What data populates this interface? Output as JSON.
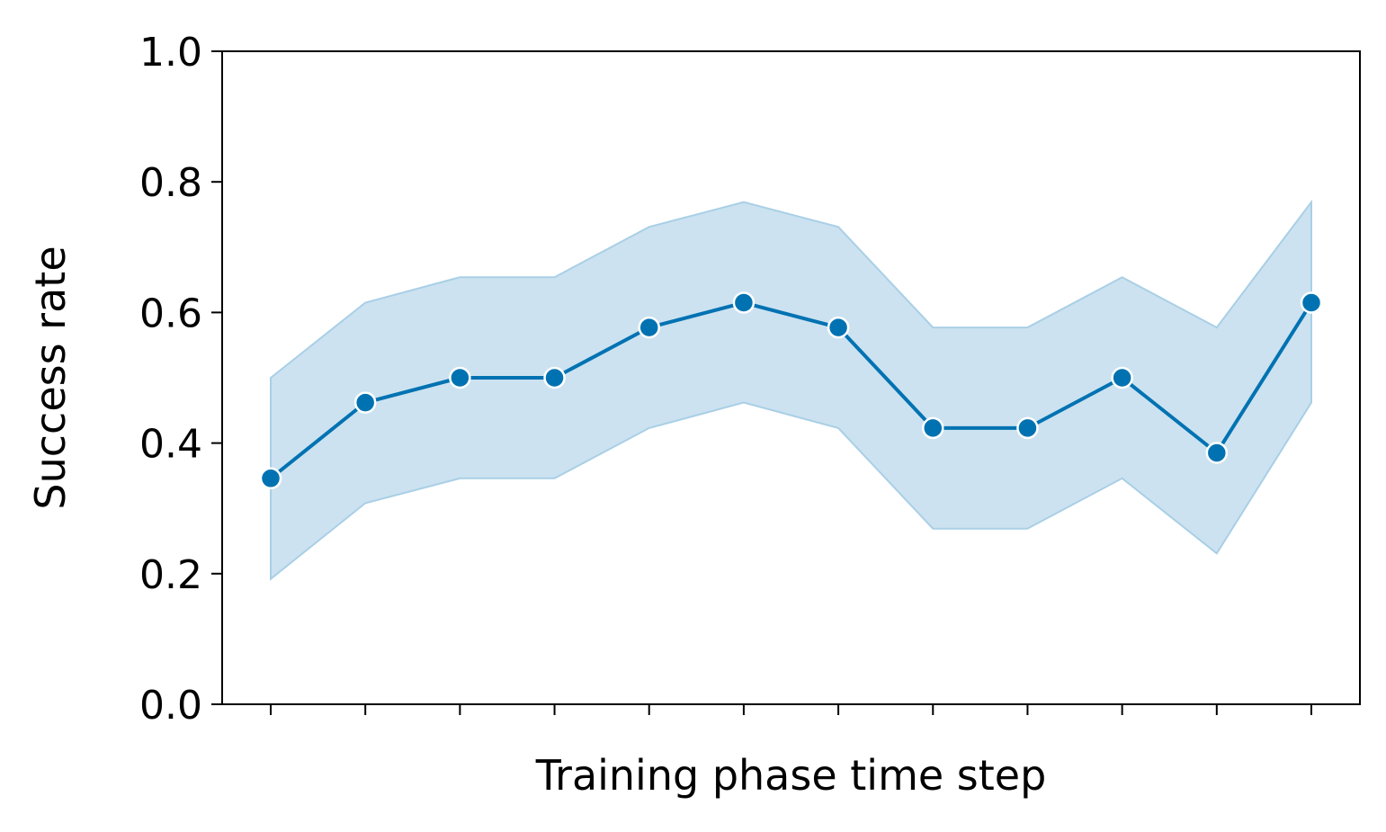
{
  "chart_data": {
    "type": "line",
    "title": "",
    "xlabel": "Training phase time step",
    "ylabel": "Success rate",
    "ylim": [
      0.0,
      1.0
    ],
    "yticks": [
      0.0,
      0.2,
      0.4,
      0.6,
      0.8,
      1.0
    ],
    "ytick_labels": [
      "0.0",
      "0.2",
      "0.4",
      "0.6",
      "0.8",
      "1.0"
    ],
    "x": [
      1,
      2,
      3,
      4,
      5,
      6,
      7,
      8,
      9,
      10,
      11,
      12
    ],
    "xtick_labels_visible": false,
    "grid": false,
    "legend": "none",
    "series": [
      {
        "values": [
          0.346,
          0.462,
          0.5,
          0.5,
          0.577,
          0.615,
          0.577,
          0.423,
          0.423,
          0.5,
          0.385,
          0.615
        ],
        "lower": [
          0.192,
          0.308,
          0.346,
          0.346,
          0.423,
          0.462,
          0.423,
          0.269,
          0.269,
          0.346,
          0.231,
          0.462
        ],
        "upper": [
          0.5,
          0.615,
          0.654,
          0.654,
          0.731,
          0.769,
          0.731,
          0.577,
          0.577,
          0.654,
          0.577,
          0.769
        ],
        "color": "#0072b2",
        "band_color": "#cce2f0",
        "band_edge_color": "#a9cfe6",
        "marker_edge_color": "#ffffff"
      }
    ]
  }
}
